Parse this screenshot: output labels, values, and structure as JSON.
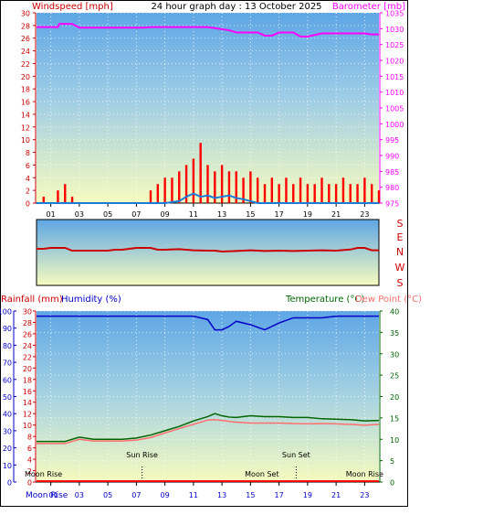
{
  "title": "24 hour graph day : 13 October 2025",
  "colors": {
    "wind": "#ff0000",
    "gust_fill": "#ff0000",
    "wind_avg": "#1e7ad8",
    "barometer": "#ff00ff",
    "direction": "#cc0000",
    "rain_axis": "#cc0000",
    "humidity": "#0000c8",
    "temperature": "#006400",
    "dewpoint": "#ff6f6f",
    "sky_top": "#5fa6e6",
    "sky_bottom": "#f6fbc0",
    "border": "#000000"
  },
  "top_panel": {
    "left_axis_label": "Windspeed [mph]",
    "right_axis_label": "Barometer [mb]"
  },
  "direction_panel": {
    "labels": [
      "S",
      "E",
      "N",
      "W",
      "S"
    ]
  },
  "bottom_panel": {
    "left_axis_label_1": "Rainfall (mm)",
    "left_axis_label_2": "Humidity (%)",
    "right_axis_label_1": "Temperature (°C)",
    "right_axis_label_2": "Dew Point (°C)",
    "annotations": {
      "moon_rise": "Moon Rise",
      "sun_rise": "Sun Rise",
      "moon_set": "Moon Set",
      "sun_set": "Sun Set"
    },
    "moon_rise_axis_label": "Moon Rise"
  },
  "chart_data": [
    {
      "type": "line",
      "panel": "wind_barometer",
      "x_ticks": [
        "01",
        "03",
        "05",
        "07",
        "09",
        "11",
        "13",
        "15",
        "17",
        "19",
        "21",
        "23"
      ],
      "xlim": [
        0,
        24
      ],
      "ylim_left": [
        0,
        30
      ],
      "y_ticks_left": [
        0,
        2,
        4,
        6,
        8,
        10,
        12,
        14,
        16,
        18,
        20,
        22,
        24,
        26,
        28,
        30
      ],
      "ylim_right": [
        975,
        1035
      ],
      "y_ticks_right": [
        975,
        980,
        985,
        990,
        995,
        1000,
        1005,
        1010,
        1015,
        1020,
        1025,
        1030,
        1035
      ],
      "series": [
        {
          "name": "Barometer",
          "axis": "right",
          "x": [
            0,
            1.5,
            1.6,
            2.5,
            3,
            7.5,
            8,
            9,
            10,
            12,
            13.5,
            14,
            15.5,
            16,
            16.5,
            17,
            17.5,
            18,
            18.5,
            19,
            20,
            21,
            22,
            23,
            23.5,
            24
          ],
          "y": [
            1030.5,
            1030.5,
            1031.5,
            1031.5,
            1030.3,
            1030.3,
            1030.5,
            1030.5,
            1030.5,
            1030.5,
            1029.5,
            1028.8,
            1028.8,
            1027.8,
            1027.8,
            1028.8,
            1028.8,
            1028.8,
            1027.5,
            1027.5,
            1028.5,
            1028.5,
            1028.5,
            1028.5,
            1028.2,
            1028.2
          ]
        },
        {
          "name": "Wind gust",
          "axis": "left",
          "x": [
            0,
            0.5,
            1,
            1.5,
            2,
            2.5,
            3,
            3.5,
            4,
            4.5,
            5,
            5.5,
            6,
            6.5,
            7,
            7.5,
            8,
            8.5,
            9,
            9.5,
            10,
            10.5,
            11,
            11.5,
            12,
            12.5,
            13,
            13.5,
            14,
            14.5,
            15,
            15.5,
            16,
            16.5,
            17,
            17.5,
            18,
            18.5,
            19,
            19.5,
            20,
            20.5,
            21,
            21.5,
            22,
            22.5,
            23,
            23.5,
            24
          ],
          "y": [
            0,
            1,
            0,
            2,
            3,
            1,
            0,
            0,
            0,
            0,
            0,
            0,
            0,
            0,
            0,
            0,
            2,
            3,
            4,
            4,
            5,
            6,
            7,
            9.5,
            6,
            5,
            6,
            5,
            5,
            4,
            5,
            4,
            3,
            4,
            3,
            4,
            3,
            4,
            3,
            3,
            4,
            3,
            3,
            4,
            3,
            3,
            4,
            3,
            2
          ]
        },
        {
          "name": "Wind average",
          "axis": "left",
          "x": [
            0,
            9,
            10,
            10.5,
            11,
            11.5,
            12,
            12.5,
            13,
            13.5,
            14,
            14.5,
            15,
            15.5,
            24
          ],
          "y": [
            0,
            0,
            0.3,
            1,
            1.5,
            1,
            1.2,
            0.8,
            1,
            1.2,
            0.8,
            0.6,
            0.3,
            0,
            0
          ]
        }
      ]
    },
    {
      "type": "line",
      "panel": "wind_direction",
      "ylim": [
        0,
        360
      ],
      "series": [
        {
          "name": "Wind direction",
          "x": [
            0,
            0.5,
            1,
            1.5,
            2,
            2.5,
            3,
            5,
            5.5,
            6,
            7,
            7.5,
            8,
            8.5,
            9,
            10,
            11,
            12,
            12.5,
            13,
            14,
            15,
            16,
            17,
            18,
            19,
            20,
            21,
            22,
            22.5,
            23,
            23.5,
            24
          ],
          "y": [
            200,
            200,
            205,
            205,
            205,
            190,
            190,
            190,
            195,
            195,
            205,
            205,
            205,
            195,
            195,
            198,
            192,
            190,
            190,
            185,
            188,
            192,
            188,
            190,
            188,
            190,
            192,
            190,
            196,
            205,
            205,
            192,
            192
          ]
        }
      ]
    },
    {
      "type": "line",
      "panel": "temperature_humidity_rain",
      "x_ticks": [
        "01",
        "03",
        "05",
        "07",
        "09",
        "11",
        "13",
        "15",
        "17",
        "19",
        "21",
        "23"
      ],
      "xlim": [
        0,
        24
      ],
      "ylim_left_humidity": [
        0,
        100
      ],
      "y_ticks_left_humidity": [
        0,
        10,
        20,
        30,
        40,
        50,
        60,
        70,
        80,
        90,
        100
      ],
      "ylim_left_rain": [
        0,
        30
      ],
      "y_ticks_left_rain": [
        0,
        2,
        4,
        6,
        8,
        10,
        12,
        14,
        16,
        18,
        20,
        22,
        24,
        26,
        28,
        30
      ],
      "ylim_right_temp": [
        0,
        40
      ],
      "y_ticks_right_temp": [
        0,
        5,
        10,
        15,
        20,
        25,
        30,
        35,
        40
      ],
      "series": [
        {
          "name": "Humidity",
          "x": [
            0,
            5,
            9,
            10,
            11,
            12,
            12.5,
            13,
            13.5,
            14,
            15,
            16,
            17,
            18,
            19,
            20,
            21,
            22,
            23,
            24
          ],
          "y": [
            97,
            97,
            97,
            97,
            97,
            95,
            89,
            89,
            91,
            94,
            92,
            89,
            93,
            96,
            96,
            96,
            97,
            97,
            97,
            97
          ]
        },
        {
          "name": "Temperature",
          "x": [
            0,
            1,
            2,
            3,
            4,
            5,
            6,
            7,
            8,
            9,
            10,
            11,
            12,
            12.5,
            13,
            13.5,
            14,
            15,
            16,
            17,
            18,
            19,
            20,
            21,
            22,
            23,
            24
          ],
          "y": [
            9.5,
            9.5,
            9.5,
            10.5,
            10,
            10,
            10,
            10.3,
            11,
            12,
            13,
            14.3,
            15.3,
            16,
            15.5,
            15.2,
            15.1,
            15.5,
            15.3,
            15.3,
            15.1,
            15.1,
            14.8,
            14.7,
            14.6,
            14.3,
            14.4
          ]
        },
        {
          "name": "Dew Point",
          "x": [
            0,
            1,
            2,
            3,
            4,
            5,
            6,
            7,
            8,
            9,
            10,
            11,
            12,
            12.5,
            13,
            13.5,
            14,
            15,
            16,
            17,
            18,
            19,
            20,
            21,
            22,
            23,
            24
          ],
          "y": [
            9,
            9,
            9,
            10,
            9.6,
            9.6,
            9.6,
            9.8,
            10.4,
            11.5,
            12.5,
            13.5,
            14.5,
            14.6,
            14.4,
            14.2,
            14,
            13.8,
            13.8,
            13.8,
            13.7,
            13.6,
            13.7,
            13.6,
            13.5,
            13.3,
            13.5
          ]
        },
        {
          "name": "Rainfall",
          "x": [
            0,
            24
          ],
          "y": [
            0,
            0
          ]
        }
      ],
      "events": [
        {
          "label_key": "moon_rise",
          "x": 0.0
        },
        {
          "label_key": "sun_rise",
          "x": 7.4
        },
        {
          "label_key": "moon_set",
          "x": 15.8
        },
        {
          "label_key": "sun_set",
          "x": 18.2
        },
        {
          "label_key": "moon_rise",
          "x": 23.0
        }
      ]
    }
  ]
}
